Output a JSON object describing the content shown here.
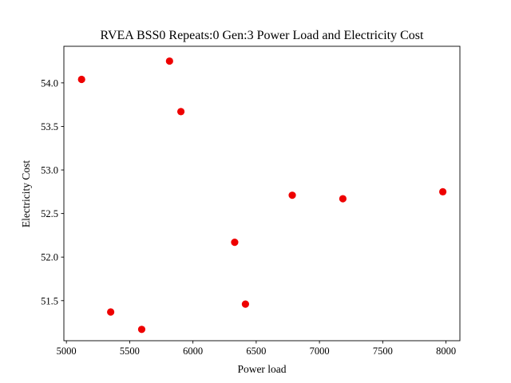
{
  "chart_data": {
    "type": "scatter",
    "title": "RVEA BSS0 Repeats:0 Gen:3 Power Load and Electricity Cost",
    "xlabel": "Power load",
    "ylabel": "Electricity Cost",
    "xlim": [
      4980,
      8110
    ],
    "ylim": [
      51.04,
      54.42
    ],
    "xticks": [
      5000,
      5500,
      6000,
      6500,
      7000,
      7500,
      8000
    ],
    "xtick_labels": [
      "5000",
      "5500",
      "6000",
      "6500",
      "7000",
      "7500",
      "8000"
    ],
    "yticks": [
      51.5,
      52.0,
      52.5,
      53.0,
      53.5,
      54.0
    ],
    "ytick_labels": [
      "51.5",
      "52.0",
      "52.5",
      "53.0",
      "53.5",
      "54.0"
    ],
    "grid": false,
    "marker_color": "#ee0000",
    "points": [
      {
        "x": 5120,
        "y": 54.04
      },
      {
        "x": 5815,
        "y": 54.25
      },
      {
        "x": 5905,
        "y": 53.67
      },
      {
        "x": 6785,
        "y": 52.71
      },
      {
        "x": 7185,
        "y": 52.67
      },
      {
        "x": 7975,
        "y": 52.75
      },
      {
        "x": 6330,
        "y": 52.17
      },
      {
        "x": 6415,
        "y": 51.46
      },
      {
        "x": 5350,
        "y": 51.37
      },
      {
        "x": 5595,
        "y": 51.17
      }
    ]
  }
}
